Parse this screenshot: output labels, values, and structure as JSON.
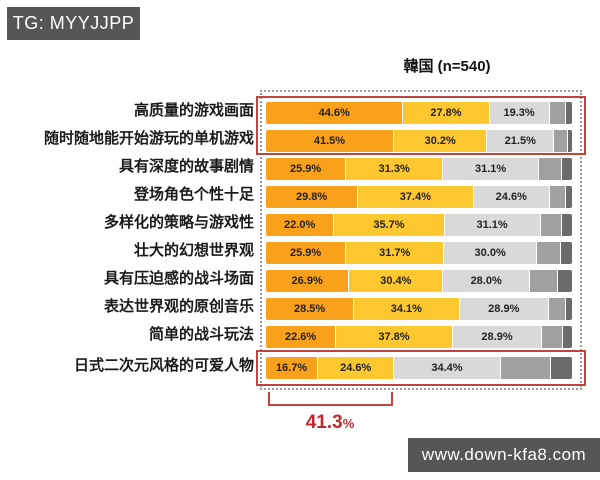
{
  "watermark_top": {
    "text": "TG: MYYJJPP",
    "bg": "#565656",
    "fg": "#ffffff"
  },
  "watermark_bottom": {
    "text": "www.down-kfa8.com",
    "bg": "#565656",
    "fg": "#ffffff"
  },
  "chart_data": {
    "type": "bar",
    "orientation": "horizontal-stacked",
    "title": "韓国  (n=540)",
    "sample_note": "n=540",
    "categories": [
      "高质量的游戏画面",
      "随时随地能开始游玩的单机游戏",
      "具有深度的故事剧情",
      "登场角色个性十足",
      "多样化的策略与游戏性",
      "壮大的幻想世界观",
      "具有压迫感的战斗场面",
      "表达世界观的原创音乐",
      "简单的战斗玩法",
      "日式二次元风格的可爱人物"
    ],
    "series": [
      {
        "name": "top-rating-orange",
        "color": "#F9A11B",
        "labeled": true,
        "values": [
          44.6,
          41.5,
          25.9,
          29.8,
          22.0,
          25.9,
          26.9,
          28.5,
          22.6,
          16.7
        ]
      },
      {
        "name": "second-rating-yellow",
        "color": "#FDC72F",
        "labeled": true,
        "values": [
          27.8,
          30.2,
          31.3,
          37.4,
          35.7,
          31.7,
          30.4,
          34.1,
          37.8,
          24.6
        ]
      },
      {
        "name": "neutral-lightgray",
        "color": "#D9D9D9",
        "labeled": true,
        "values": [
          19.3,
          21.5,
          31.1,
          24.6,
          31.1,
          30.0,
          28.0,
          28.9,
          28.9,
          34.4
        ]
      },
      {
        "name": "low-rating-midgray",
        "color": "#A0A0A0",
        "labeled": false,
        "values": [
          5.0,
          4.1,
          7.0,
          4.9,
          6.7,
          7.4,
          8.8,
          5.1,
          6.4,
          16.3
        ]
      },
      {
        "name": "lowest-rating-darkgray",
        "color": "#6B6B6B",
        "labeled": false,
        "values": [
          3.3,
          2.7,
          4.7,
          3.3,
          4.5,
          5.0,
          5.9,
          3.4,
          4.3,
          8.0
        ]
      }
    ],
    "xlim": [
      0,
      100
    ],
    "legend": "none",
    "highlights": {
      "top_box_rows": [
        0,
        1
      ],
      "bottom_box_rows": [
        9
      ]
    },
    "annotation": {
      "value": "41.3",
      "suffix": "%",
      "note_color": "#c0292b"
    }
  }
}
